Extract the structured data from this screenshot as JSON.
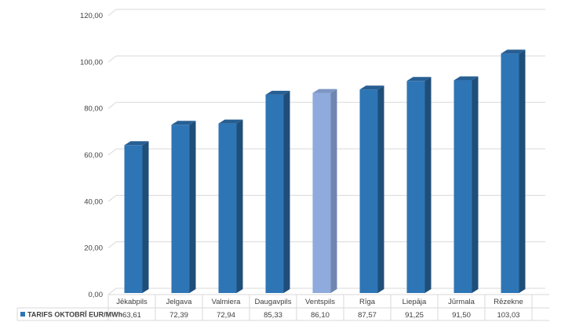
{
  "chart_data": {
    "type": "bar",
    "categories": [
      "Jēkabpils",
      "Jelgava",
      "Valmiera",
      "Daugavpils",
      "Ventspils",
      "Rīga",
      "Liepāja",
      "Jūrmala",
      "Rēzekne"
    ],
    "series": [
      {
        "name": "TARIFS OKTOBRĪ EUR/MWh",
        "values": [
          63.61,
          72.39,
          72.94,
          85.33,
          86.1,
          87.57,
          91.25,
          91.5,
          103.03
        ],
        "value_labels": [
          "63,61",
          "72,39",
          "72,94",
          "85,33",
          "86,10",
          "87,57",
          "91,25",
          "91,50",
          "103,03"
        ]
      }
    ],
    "y_ticks": [
      "0,00",
      "20,00",
      "40,00",
      "60,00",
      "80,00",
      "100,00",
      "120,00"
    ],
    "ylim": [
      0,
      120
    ],
    "grid": true,
    "style": "3d-columns",
    "legend": "bottom-left-in-data-table",
    "colors": {
      "bar": "#2E75B6",
      "bar_side": "#1F4E79",
      "bar_top": "#275F93",
      "highlight": "#8FAADC",
      "highlight_side": "#6F86B0",
      "highlight_top": "#7D96C4",
      "highlight_category": "Ventspils",
      "legend_marker": "#2E75B6",
      "grid": "#D9D9D9"
    }
  }
}
